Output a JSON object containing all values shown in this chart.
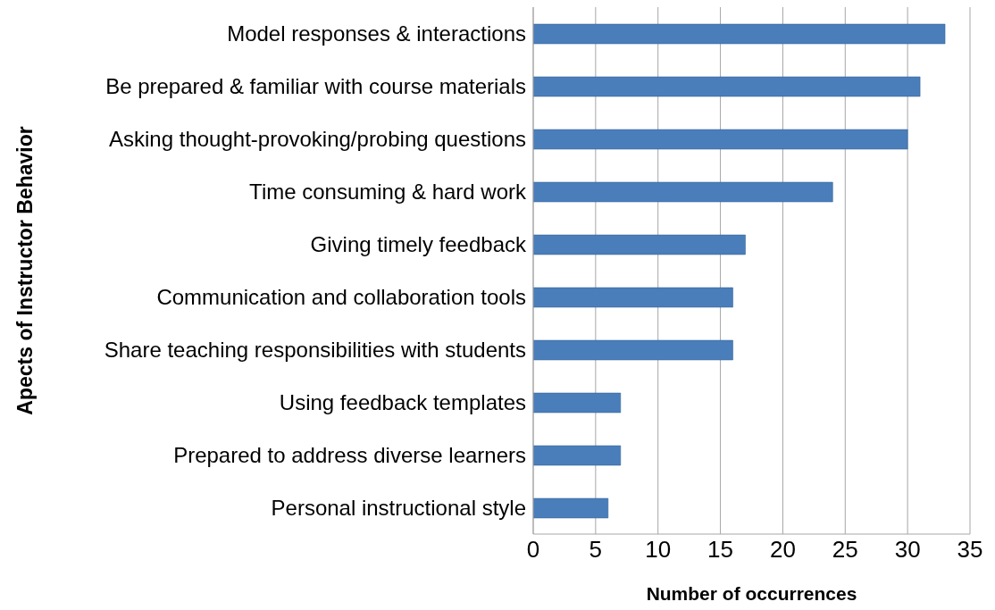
{
  "chart_data": {
    "type": "bar",
    "orientation": "horizontal",
    "xlabel": "Number of occurrences",
    "ylabel": "Apects of Instructor Behavior",
    "categories": [
      "Model responses & interactions",
      "Be prepared & familiar with course materials",
      "Asking thought-provoking/probing questions",
      "Time consuming & hard work",
      "Giving timely feedback",
      "Communication and collaboration tools",
      "Share teaching responsibilities with students",
      "Using feedback templates",
      "Prepared to address diverse learners",
      "Personal instructional style"
    ],
    "values": [
      33,
      31,
      30,
      24,
      17,
      16,
      16,
      7,
      7,
      6
    ],
    "color": "#4a7ebb",
    "xlim": [
      0,
      35
    ],
    "xticks": [
      0,
      5,
      10,
      15,
      20,
      25,
      30,
      35
    ],
    "grid": "x"
  }
}
